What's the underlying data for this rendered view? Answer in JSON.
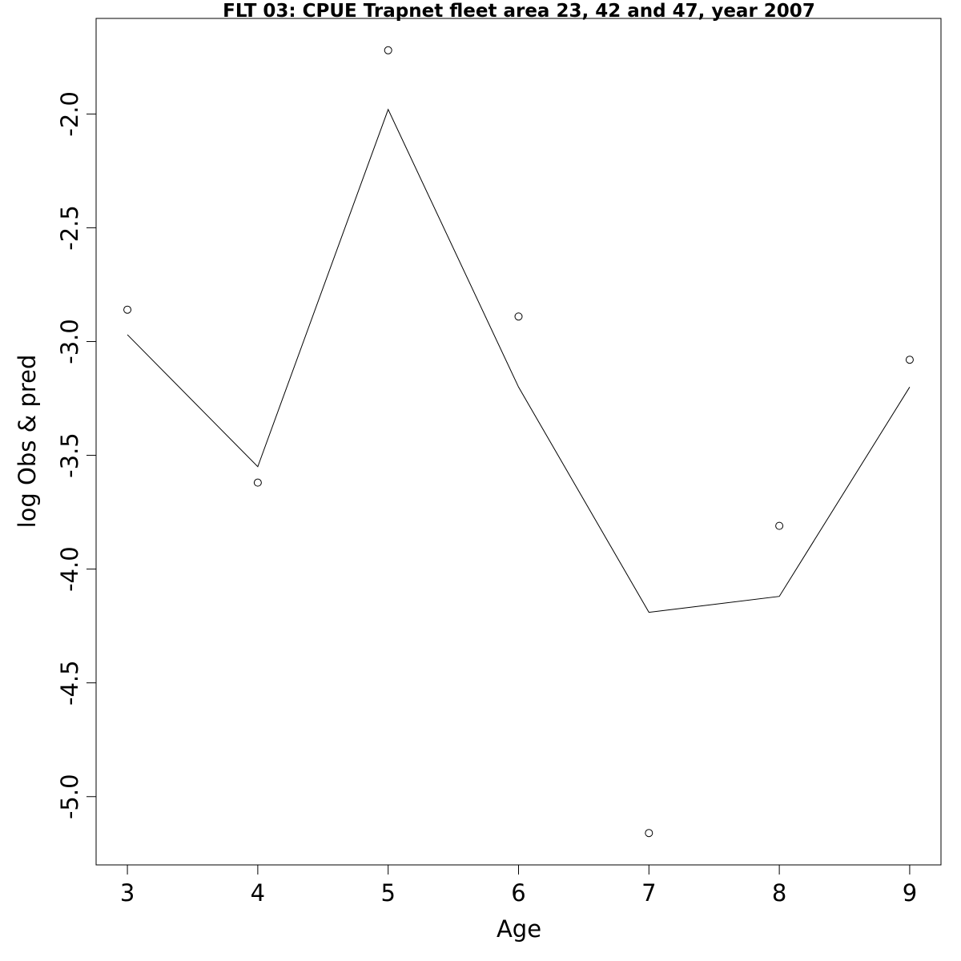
{
  "chart_data": {
    "type": "scatter",
    "title": "FLT 03: CPUE Trapnet fleet area 23, 42 and 47, year 2007",
    "xlabel": "Age",
    "ylabel": "log Obs & pred",
    "x_ticks": [
      "3",
      "4",
      "5",
      "6",
      "7",
      "8",
      "9"
    ],
    "y_ticks": [
      "-5.0",
      "-4.5",
      "-4.0",
      "-3.5",
      "-3.0",
      "-2.5",
      "-2.0"
    ],
    "xlim": [
      2.76,
      9.24
    ],
    "ylim": [
      -5.3,
      -1.58
    ],
    "grid": false,
    "series": [
      {
        "kind": "points",
        "x": [
          3,
          4,
          5,
          6,
          7,
          8,
          9
        ],
        "y": [
          -2.86,
          -3.62,
          -1.72,
          -2.89,
          -5.16,
          -3.81,
          -3.08
        ]
      },
      {
        "kind": "line",
        "x": [
          3,
          4,
          5,
          6,
          7,
          8,
          9
        ],
        "y": [
          -2.97,
          -3.55,
          -1.98,
          -3.2,
          -4.19,
          -4.12,
          -3.2
        ]
      }
    ],
    "colors": {
      "points": "#000000",
      "line": "#000000",
      "frame": "#000000"
    }
  }
}
